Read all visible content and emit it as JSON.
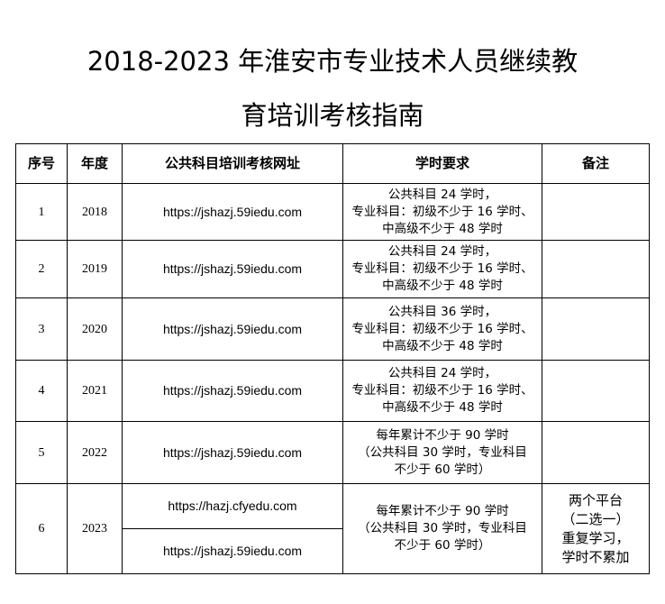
{
  "title": {
    "line1": "2018-2023 年淮安市专业技术人员继续教",
    "line2": "育培训考核指南"
  },
  "table": {
    "headers": [
      "序号",
      "年度",
      "公共科目培训考核网址",
      "学时要求",
      "备注"
    ],
    "rows": [
      {
        "no": "1",
        "year": "2018",
        "url": "https://jshazj.59iedu.com",
        "req": [
          "公共科目 24 学时，",
          "专业科目：初级不少于 16 学时、",
          "中高级不少于 48 学时"
        ],
        "note": ""
      },
      {
        "no": "2",
        "year": "2019",
        "url": "https://jshazj.59iedu.com",
        "req": [
          "公共科目 24 学时，",
          "专业科目：初级不少于 16 学时、",
          "中高级不少于 48 学时"
        ],
        "note": ""
      },
      {
        "no": "3",
        "year": "2020",
        "url": "https://jshazj.59iedu.com",
        "req": [
          "公共科目 36 学时，",
          "专业科目：初级不少于 16 学时、",
          "中高级不少于 48 学时"
        ],
        "note": ""
      },
      {
        "no": "4",
        "year": "2021",
        "url": "https://jshazj.59iedu.com",
        "req": [
          "公共科目 24 学时，",
          "专业科目：初级不少于 16 学时、",
          "中高级不少于 48 学时"
        ],
        "note": ""
      },
      {
        "no": "5",
        "year": "2022",
        "url": "https://jshazj.59iedu.com",
        "req": [
          "每年累计不少于 90 学时",
          "（公共科目 30 学时，专业科目",
          "不少于 60 学时）"
        ],
        "note": ""
      },
      {
        "no": "6",
        "year": "2023",
        "urls": [
          "https://hazj.cfyedu.com",
          "https://jshazj.59iedu.com"
        ],
        "req": [
          "每年累计不少于 90 学时",
          "（公共科目 30 学时，专业科目",
          "不少于 60 学时）"
        ],
        "note": [
          "两个平台",
          "（二选一）",
          "重复学习，",
          "学时不累加"
        ]
      }
    ]
  }
}
